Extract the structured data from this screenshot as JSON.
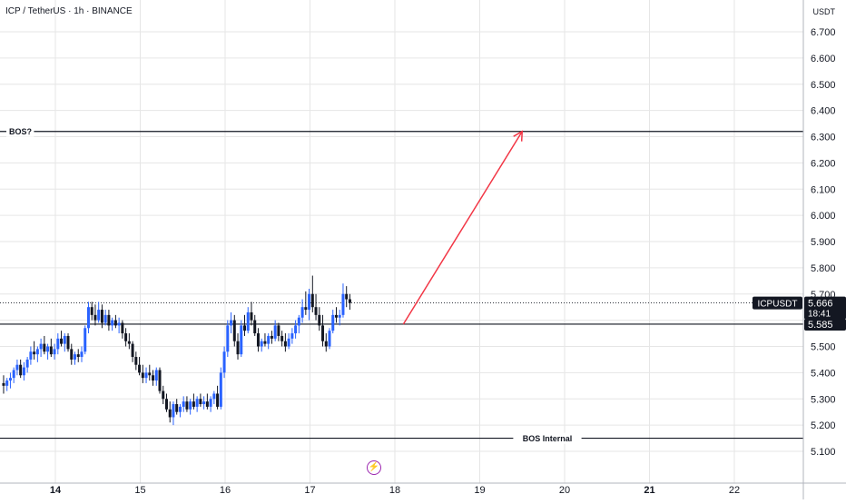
{
  "header": {
    "title": "ICP / TetherUS · 1h · BINANCE",
    "currency": "USDT"
  },
  "chart_data": {
    "type": "candlestick",
    "symbol": "ICPUSDT",
    "ylim": [
      5.05,
      6.75
    ],
    "yticks": [
      "6.700",
      "6.600",
      "6.500",
      "6.400",
      "6.300",
      "6.200",
      "6.100",
      "6.000",
      "5.900",
      "5.800",
      "5.700",
      "5.600",
      "5.500",
      "5.400",
      "5.300",
      "5.200",
      "5.100"
    ],
    "xticks": [
      {
        "label": "14",
        "day": 14,
        "bold": true
      },
      {
        "label": "15",
        "day": 15,
        "bold": false
      },
      {
        "label": "16",
        "day": 16,
        "bold": false
      },
      {
        "label": "17",
        "day": 17,
        "bold": false
      },
      {
        "label": "18",
        "day": 18,
        "bold": false
      },
      {
        "label": "19",
        "day": 19,
        "bold": false
      },
      {
        "label": "20",
        "day": 20,
        "bold": false
      },
      {
        "label": "21",
        "day": 21,
        "bold": true
      },
      {
        "label": "22",
        "day": 22,
        "bold": false
      }
    ],
    "last_price": {
      "symbol": "ICPUSDT",
      "price": "5.666",
      "countdown": "18:41",
      "value": 5.666
    },
    "support_price": {
      "label": "5.585",
      "value": 5.585
    },
    "levels": [
      {
        "label": "BOS?",
        "value": 6.32,
        "label_side": "left"
      },
      {
        "label": "BOS Internal",
        "value": 5.15,
        "label_side": "center"
      }
    ],
    "arrow": {
      "from": {
        "day": 18.1,
        "price": 5.585
      },
      "to": {
        "day": 19.5,
        "price": 6.32
      },
      "color": "#f23645"
    },
    "colors": {
      "up": "#2962ff",
      "down": "#131722",
      "grid": "#e6e6e6",
      "level": "#131722"
    },
    "candles": [
      [
        13.39,
        5.36,
        5.39,
        5.32,
        5.35
      ],
      [
        13.43,
        5.35,
        5.38,
        5.33,
        5.37
      ],
      [
        13.47,
        5.37,
        5.4,
        5.34,
        5.38
      ],
      [
        13.51,
        5.38,
        5.42,
        5.36,
        5.41
      ],
      [
        13.55,
        5.41,
        5.45,
        5.39,
        5.43
      ],
      [
        13.59,
        5.43,
        5.45,
        5.38,
        5.39
      ],
      [
        13.63,
        5.39,
        5.44,
        5.37,
        5.42
      ],
      [
        13.67,
        5.42,
        5.46,
        5.4,
        5.45
      ],
      [
        13.71,
        5.45,
        5.5,
        5.43,
        5.48
      ],
      [
        13.75,
        5.48,
        5.52,
        5.45,
        5.47
      ],
      [
        13.79,
        5.47,
        5.5,
        5.44,
        5.49
      ],
      [
        13.83,
        5.49,
        5.53,
        5.46,
        5.51
      ],
      [
        13.87,
        5.51,
        5.54,
        5.47,
        5.48
      ],
      [
        13.91,
        5.48,
        5.51,
        5.45,
        5.5
      ],
      [
        13.95,
        5.5,
        5.53,
        5.46,
        5.47
      ],
      [
        13.99,
        5.47,
        5.51,
        5.45,
        5.49
      ],
      [
        14.03,
        5.49,
        5.55,
        5.47,
        5.53
      ],
      [
        14.07,
        5.53,
        5.56,
        5.5,
        5.51
      ],
      [
        14.11,
        5.51,
        5.55,
        5.48,
        5.54
      ],
      [
        14.15,
        5.54,
        5.55,
        5.48,
        5.49
      ],
      [
        14.19,
        5.49,
        5.51,
        5.43,
        5.45
      ],
      [
        14.23,
        5.45,
        5.48,
        5.43,
        5.47
      ],
      [
        14.27,
        5.47,
        5.49,
        5.44,
        5.46
      ],
      [
        14.31,
        5.46,
        5.5,
        5.44,
        5.48
      ],
      [
        14.35,
        5.48,
        5.58,
        5.47,
        5.57
      ],
      [
        14.39,
        5.57,
        5.67,
        5.55,
        5.65
      ],
      [
        14.43,
        5.65,
        5.67,
        5.6,
        5.62
      ],
      [
        14.47,
        5.62,
        5.66,
        5.58,
        5.6
      ],
      [
        14.51,
        5.6,
        5.67,
        5.59,
        5.64
      ],
      [
        14.55,
        5.64,
        5.66,
        5.57,
        5.59
      ],
      [
        14.59,
        5.59,
        5.64,
        5.58,
        5.62
      ],
      [
        14.63,
        5.62,
        5.64,
        5.56,
        5.58
      ],
      [
        14.67,
        5.58,
        5.61,
        5.56,
        5.6
      ],
      [
        14.71,
        5.6,
        5.62,
        5.57,
        5.58
      ],
      [
        14.75,
        5.58,
        5.61,
        5.55,
        5.59
      ],
      [
        14.79,
        5.59,
        5.6,
        5.53,
        5.55
      ],
      [
        14.83,
        5.55,
        5.57,
        5.5,
        5.52
      ],
      [
        14.87,
        5.52,
        5.55,
        5.49,
        5.51
      ],
      [
        14.91,
        5.51,
        5.52,
        5.44,
        5.46
      ],
      [
        14.95,
        5.46,
        5.48,
        5.41,
        5.43
      ],
      [
        14.99,
        5.43,
        5.46,
        5.39,
        5.4
      ],
      [
        15.03,
        5.4,
        5.43,
        5.36,
        5.38
      ],
      [
        15.07,
        5.38,
        5.42,
        5.36,
        5.4
      ],
      [
        15.11,
        5.4,
        5.43,
        5.37,
        5.39
      ],
      [
        15.15,
        5.39,
        5.41,
        5.35,
        5.37
      ],
      [
        15.19,
        5.37,
        5.42,
        5.35,
        5.41
      ],
      [
        15.23,
        5.41,
        5.42,
        5.32,
        5.33
      ],
      [
        15.27,
        5.33,
        5.35,
        5.28,
        5.3
      ],
      [
        15.31,
        5.3,
        5.32,
        5.25,
        5.26
      ],
      [
        15.35,
        5.26,
        5.29,
        5.21,
        5.23
      ],
      [
        15.39,
        5.23,
        5.29,
        5.2,
        5.28
      ],
      [
        15.43,
        5.28,
        5.3,
        5.24,
        5.25
      ],
      [
        15.47,
        5.25,
        5.28,
        5.23,
        5.27
      ],
      [
        15.51,
        5.27,
        5.31,
        5.25,
        5.29
      ],
      [
        15.55,
        5.29,
        5.31,
        5.25,
        5.26
      ],
      [
        15.59,
        5.26,
        5.3,
        5.24,
        5.29
      ],
      [
        15.63,
        5.29,
        5.32,
        5.26,
        5.27
      ],
      [
        15.67,
        5.27,
        5.31,
        5.25,
        5.3
      ],
      [
        15.71,
        5.3,
        5.32,
        5.27,
        5.28
      ],
      [
        15.75,
        5.28,
        5.31,
        5.26,
        5.29
      ],
      [
        15.79,
        5.29,
        5.32,
        5.26,
        5.27
      ],
      [
        15.83,
        5.27,
        5.31,
        5.25,
        5.3
      ],
      [
        15.87,
        5.3,
        5.33,
        5.28,
        5.32
      ],
      [
        15.91,
        5.32,
        5.35,
        5.26,
        5.27
      ],
      [
        15.95,
        5.27,
        5.42,
        5.26,
        5.4
      ],
      [
        15.99,
        5.4,
        5.5,
        5.38,
        5.48
      ],
      [
        16.03,
        5.48,
        5.6,
        5.46,
        5.58
      ],
      [
        16.07,
        5.58,
        5.63,
        5.55,
        5.6
      ],
      [
        16.11,
        5.6,
        5.62,
        5.5,
        5.52
      ],
      [
        16.15,
        5.52,
        5.55,
        5.45,
        5.47
      ],
      [
        16.19,
        5.47,
        5.6,
        5.46,
        5.58
      ],
      [
        16.23,
        5.58,
        5.62,
        5.54,
        5.56
      ],
      [
        16.27,
        5.56,
        5.65,
        5.55,
        5.63
      ],
      [
        16.31,
        5.63,
        5.67,
        5.58,
        5.6
      ],
      [
        16.35,
        5.6,
        5.62,
        5.54,
        5.55
      ],
      [
        16.39,
        5.55,
        5.57,
        5.48,
        5.5
      ],
      [
        16.43,
        5.5,
        5.53,
        5.48,
        5.52
      ],
      [
        16.47,
        5.52,
        5.55,
        5.5,
        5.51
      ],
      [
        16.51,
        5.51,
        5.55,
        5.49,
        5.54
      ],
      [
        16.55,
        5.54,
        5.56,
        5.51,
        5.53
      ],
      [
        16.59,
        5.53,
        5.6,
        5.52,
        5.58
      ],
      [
        16.63,
        5.58,
        5.59,
        5.52,
        5.54
      ],
      [
        16.67,
        5.54,
        5.56,
        5.5,
        5.52
      ],
      [
        16.71,
        5.52,
        5.55,
        5.48,
        5.5
      ],
      [
        16.75,
        5.5,
        5.55,
        5.49,
        5.53
      ],
      [
        16.79,
        5.53,
        5.57,
        5.51,
        5.55
      ],
      [
        16.83,
        5.55,
        5.6,
        5.53,
        5.58
      ],
      [
        16.87,
        5.58,
        5.62,
        5.55,
        5.61
      ],
      [
        16.91,
        5.61,
        5.68,
        5.59,
        5.65
      ],
      [
        16.95,
        5.65,
        5.71,
        5.62,
        5.64
      ],
      [
        16.99,
        5.64,
        5.72,
        5.6,
        5.7
      ],
      [
        17.03,
        5.7,
        5.77,
        5.63,
        5.65
      ],
      [
        17.07,
        5.65,
        5.7,
        5.6,
        5.62
      ],
      [
        17.11,
        5.62,
        5.65,
        5.56,
        5.58
      ],
      [
        17.15,
        5.58,
        5.62,
        5.5,
        5.52
      ],
      [
        17.19,
        5.52,
        5.55,
        5.48,
        5.5
      ],
      [
        17.23,
        5.5,
        5.57,
        5.49,
        5.56
      ],
      [
        17.27,
        5.56,
        5.64,
        5.55,
        5.62
      ],
      [
        17.31,
        5.62,
        5.65,
        5.59,
        5.61
      ],
      [
        17.35,
        5.61,
        5.64,
        5.58,
        5.62
      ],
      [
        17.39,
        5.62,
        5.74,
        5.61,
        5.7
      ],
      [
        17.43,
        5.7,
        5.73,
        5.65,
        5.68
      ],
      [
        17.47,
        5.68,
        5.7,
        5.64,
        5.666
      ]
    ]
  }
}
